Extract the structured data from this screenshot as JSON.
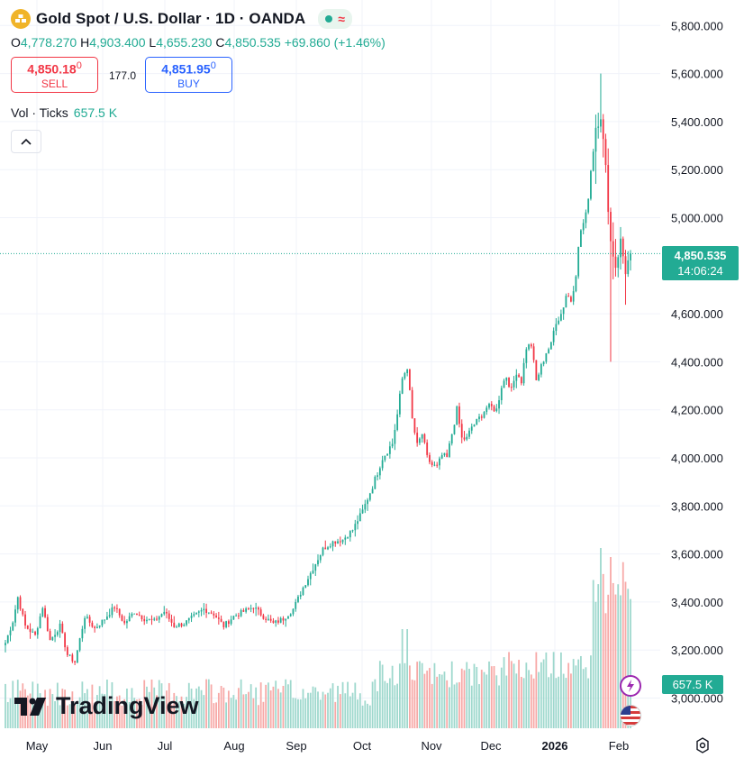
{
  "header": {
    "title": "Gold Spot / U.S. Dollar · 1D · OANDA",
    "wave_glyph": "≈",
    "logo_icon": "gold-bars-icon"
  },
  "ohlc": {
    "o_label": "O",
    "o": "4,778.270",
    "h_label": "H",
    "h": "4,903.400",
    "l_label": "L",
    "l": "4,655.230",
    "c_label": "C",
    "c": "4,850.535",
    "change": "+69.860 (+1.46%)"
  },
  "trade": {
    "sell_price": "4,850.18",
    "sell_sup": "0",
    "sell_label": "SELL",
    "spread": "177.0",
    "buy_price": "4,851.95",
    "buy_sup": "0",
    "buy_label": "BUY"
  },
  "volume": {
    "label": "Vol · Ticks",
    "value": "657.5 K"
  },
  "price_tag": {
    "price": "4,850.535",
    "countdown": "14:06:24"
  },
  "volume_tag": "657.5 K",
  "brand": "TradingView",
  "colors": {
    "up": "#22ab94",
    "down": "#f23645",
    "up_vol": "#9ed8cd",
    "down_vol": "#f7a9a7",
    "grid": "#f0f3fa"
  },
  "chart_data": {
    "type": "candlestick",
    "symbol": "XAUUSD",
    "interval": "1D",
    "y_ticks": [
      "5,800.000",
      "5,600.000",
      "5,400.000",
      "5,200.000",
      "5,000.000",
      "4,600.000",
      "4,400.000",
      "4,200.000",
      "4,000.000",
      "3,800.000",
      "3,600.000",
      "3,400.000",
      "3,200.000",
      "3,000.000"
    ],
    "y_tick_values": [
      5800,
      5600,
      5400,
      5200,
      5000,
      4600,
      4400,
      4200,
      4000,
      3800,
      3600,
      3400,
      3200,
      3000
    ],
    "x_ticks": [
      "May",
      "Jun",
      "Jul",
      "Aug",
      "Sep",
      "Oct",
      "Nov",
      "Dec",
      "2026",
      "Feb"
    ],
    "ylim": [
      2850,
      5900
    ],
    "last_close": 4850.535,
    "close_anchors": [
      [
        0,
        3230
      ],
      [
        3,
        3320
      ],
      [
        5,
        3420
      ],
      [
        8,
        3300
      ],
      [
        12,
        3260
      ],
      [
        15,
        3380
      ],
      [
        18,
        3240
      ],
      [
        22,
        3300
      ],
      [
        25,
        3180
      ],
      [
        28,
        3150
      ],
      [
        32,
        3340
      ],
      [
        36,
        3290
      ],
      [
        40,
        3330
      ],
      [
        44,
        3380
      ],
      [
        48,
        3310
      ],
      [
        52,
        3360
      ],
      [
        56,
        3330
      ],
      [
        60,
        3320
      ],
      [
        64,
        3360
      ],
      [
        68,
        3300
      ],
      [
        72,
        3310
      ],
      [
        76,
        3340
      ],
      [
        80,
        3370
      ],
      [
        84,
        3350
      ],
      [
        88,
        3300
      ],
      [
        92,
        3340
      ],
      [
        96,
        3360
      ],
      [
        100,
        3380
      ],
      [
        104,
        3340
      ],
      [
        108,
        3310
      ],
      [
        112,
        3330
      ],
      [
        116,
        3370
      ],
      [
        120,
        3460
      ],
      [
        124,
        3540
      ],
      [
        128,
        3620
      ],
      [
        132,
        3650
      ],
      [
        136,
        3660
      ],
      [
        140,
        3700
      ],
      [
        144,
        3780
      ],
      [
        148,
        3880
      ],
      [
        152,
        4000
      ],
      [
        156,
        4060
      ],
      [
        158,
        4180
      ],
      [
        160,
        4330
      ],
      [
        162,
        4380
      ],
      [
        164,
        4160
      ],
      [
        166,
        4050
      ],
      [
        168,
        4100
      ],
      [
        170,
        4000
      ],
      [
        172,
        3970
      ],
      [
        174,
        3960
      ],
      [
        176,
        4010
      ],
      [
        178,
        4000
      ],
      [
        180,
        4100
      ],
      [
        182,
        4200
      ],
      [
        184,
        4080
      ],
      [
        186,
        4080
      ],
      [
        188,
        4130
      ],
      [
        190,
        4150
      ],
      [
        192,
        4180
      ],
      [
        194,
        4210
      ],
      [
        196,
        4210
      ],
      [
        198,
        4200
      ],
      [
        200,
        4300
      ],
      [
        202,
        4340
      ],
      [
        204,
        4280
      ],
      [
        206,
        4360
      ],
      [
        208,
        4320
      ],
      [
        210,
        4460
      ],
      [
        212,
        4470
      ],
      [
        214,
        4320
      ],
      [
        216,
        4380
      ],
      [
        218,
        4440
      ],
      [
        220,
        4470
      ],
      [
        222,
        4580
      ],
      [
        224,
        4600
      ],
      [
        226,
        4680
      ],
      [
        228,
        4660
      ],
      [
        230,
        4780
      ],
      [
        232,
        4950
      ],
      [
        234,
        5000
      ],
      [
        236,
        5200
      ],
      [
        238,
        5380
      ],
      [
        240,
        5430
      ],
      [
        242,
        5200
      ],
      [
        244,
        4900
      ],
      [
        246,
        4800
      ],
      [
        248,
        4900
      ],
      [
        250,
        4780
      ],
      [
        252,
        4850
      ]
    ],
    "volume_axis_max": 3000,
    "last_volume": 657500
  }
}
